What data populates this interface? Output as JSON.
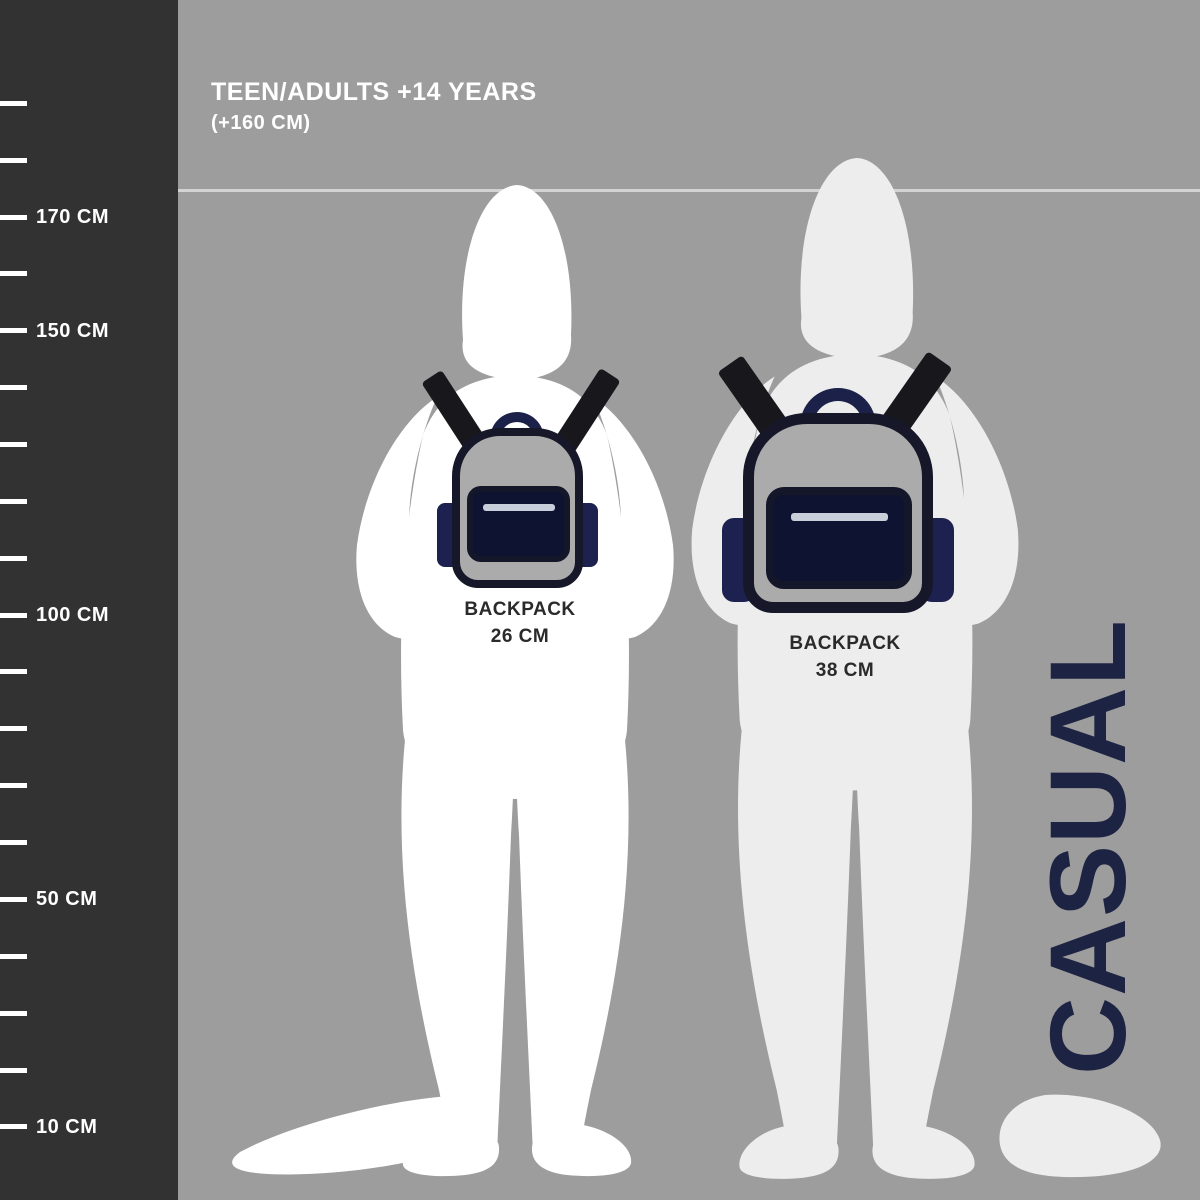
{
  "header": {
    "audience_title": "TEEN/ADULTS +14 YEARS",
    "audience_subtitle": "(+160 CM)"
  },
  "ruler": {
    "unit": "CM",
    "tick_step_cm": 10,
    "ticks_cm": [
      190,
      180,
      170,
      160,
      150,
      140,
      130,
      120,
      110,
      100,
      90,
      80,
      70,
      60,
      50,
      40,
      30,
      20,
      10
    ],
    "labels": [
      {
        "cm": 170,
        "text": "170 CM"
      },
      {
        "cm": 150,
        "text": "150 CM"
      },
      {
        "cm": 100,
        "text": "100 CM"
      },
      {
        "cm": 50,
        "text": "50 CM"
      },
      {
        "cm": 10,
        "text": "10 CM"
      }
    ]
  },
  "backpacks": [
    {
      "label_line1": "BACKPACK",
      "label_line2": "26 CM",
      "size_cm": 26
    },
    {
      "label_line1": "BACKPACK",
      "label_line2": "38 CM",
      "size_cm": 38
    }
  ],
  "category": {
    "label": "CASUAL"
  },
  "colors": {
    "background": "#9d9d9d",
    "ruler_background": "#323232",
    "tick": "#ffffff",
    "title_text": "#ffffff",
    "silhouette_primary": "#ffffff",
    "silhouette_secondary": "#ededed",
    "backpack_body": "#ababab",
    "backpack_outline": "#16182a",
    "backpack_pocket": "#0d1331",
    "backpack_side_pocket": "#1c2150",
    "backpack_handle": "#1b2148",
    "strap": "#17171c",
    "label_text": "#2a2a2a",
    "category_text": "#1d2342",
    "reference_line": "rgba(255,255,255,0.55)"
  }
}
